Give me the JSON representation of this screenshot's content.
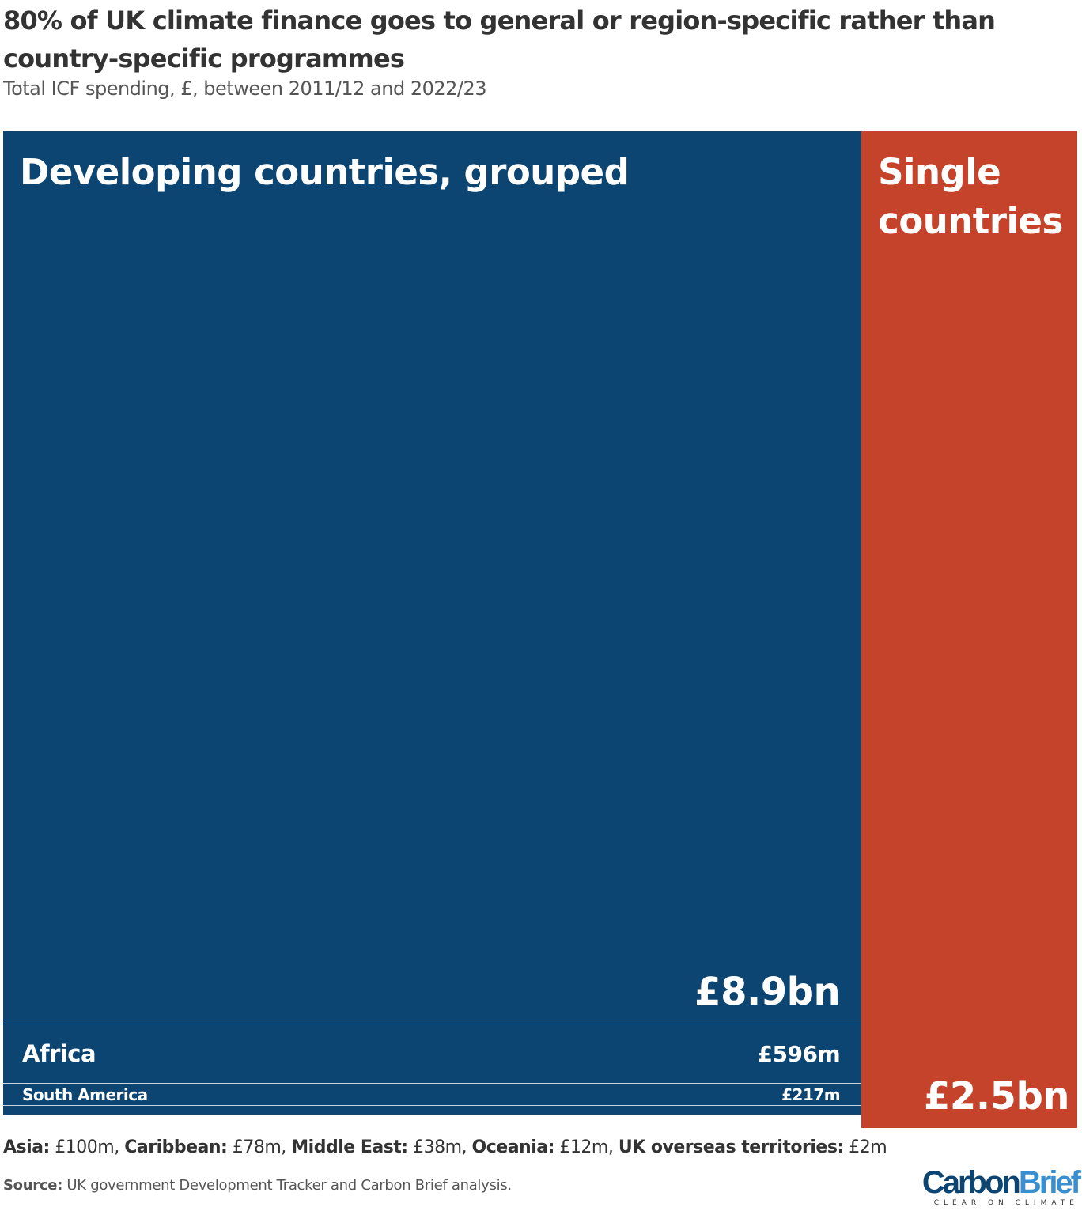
{
  "title": "80% of UK climate finance goes to general or region-specific rather than country-specific programmes",
  "subtitle": "Total ICF spending, £, between 2011/12 and 2022/23",
  "colors": {
    "grouped": "#0c4571",
    "single": "#c6432b",
    "logo_carbon": "#0c4571",
    "logo_brief": "#3a8fd0"
  },
  "chart_data": {
    "type": "treemap",
    "units": "£bn",
    "groups": [
      {
        "name": "Developing countries, grouped",
        "color": "#0c4571",
        "children": [
          {
            "name": "",
            "value": 8.9,
            "label": "£8.9bn"
          },
          {
            "name": "Africa",
            "value": 0.596,
            "label": "£596m"
          },
          {
            "name": "South America",
            "value": 0.217,
            "label": "£217m"
          },
          {
            "name": "Asia",
            "value": 0.1,
            "label": "£100m"
          },
          {
            "name": "Caribbean",
            "value": 0.078,
            "label": "£78m"
          },
          {
            "name": "Middle East",
            "value": 0.038,
            "label": "£38m"
          },
          {
            "name": "Oceania",
            "value": 0.012,
            "label": "£12m"
          },
          {
            "name": "UK overseas territories",
            "value": 0.002,
            "label": "£2m"
          }
        ]
      },
      {
        "name": "Single countries",
        "color": "#c6432b",
        "children": [
          {
            "name": "",
            "value": 2.5,
            "label": "£2.5bn"
          }
        ]
      }
    ]
  },
  "footnote": [
    {
      "name": "Asia:",
      "value": "£100m,"
    },
    {
      "name": "Caribbean:",
      "value": "£78m,"
    },
    {
      "name": "Middle East:",
      "value": "£38m,"
    },
    {
      "name": "Oceania:",
      "value": "£12m,"
    },
    {
      "name": "UK overseas territories:",
      "value": "£2m"
    }
  ],
  "source": {
    "label": "Source:",
    "text": "UK government Development Tracker and Carbon Brief analysis."
  },
  "logo": {
    "carbon": "Carbon",
    "brief": "Brief",
    "tagline": "CLEAR ON CLIMATE"
  }
}
